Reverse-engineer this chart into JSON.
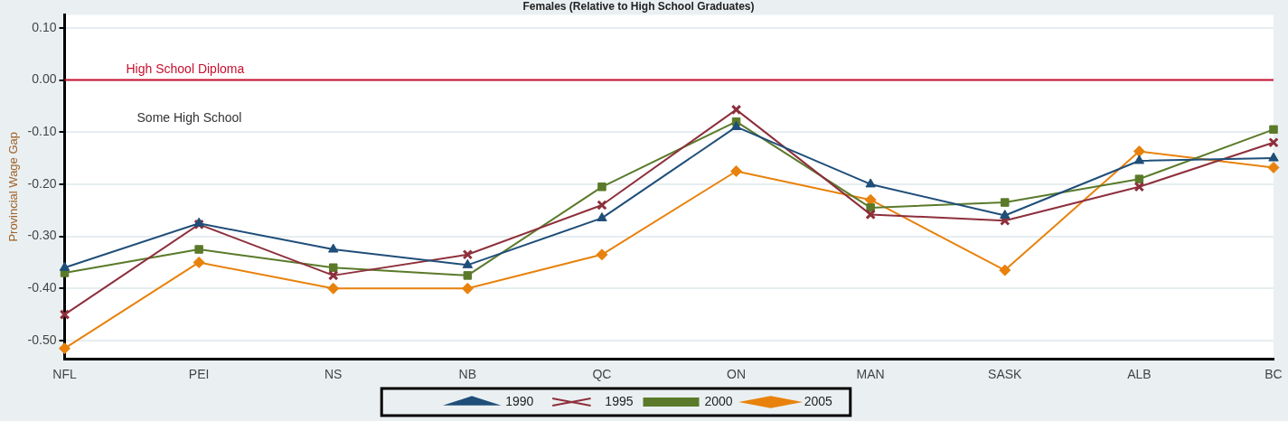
{
  "chart_data": {
    "type": "line",
    "title": "Females (Relative to High School Graduates)",
    "ylabel": "Provincial Wage Gap",
    "categories": [
      "NFL",
      "PEI",
      "NS",
      "NB",
      "QC",
      "ON",
      "MAN",
      "SASK",
      "ALB",
      "BC"
    ],
    "series": [
      {
        "name": "1990",
        "color": "#1f4e79",
        "marker": "triangle",
        "values": [
          -0.36,
          -0.275,
          -0.325,
          -0.355,
          -0.265,
          -0.09,
          -0.2,
          -0.26,
          -0.155,
          -0.15
        ]
      },
      {
        "name": "1995",
        "color": "#8e2f3c",
        "marker": "cross",
        "values": [
          -0.45,
          -0.277,
          -0.375,
          -0.335,
          -0.24,
          -0.057,
          -0.258,
          -0.27,
          -0.205,
          -0.12
        ]
      },
      {
        "name": "2000",
        "color": "#5a7a2a",
        "marker": "square",
        "values": [
          -0.37,
          -0.325,
          -0.36,
          -0.375,
          -0.205,
          -0.08,
          -0.245,
          -0.235,
          -0.19,
          -0.095
        ]
      },
      {
        "name": "2005",
        "color": "#e8820c",
        "marker": "diamond",
        "values": [
          -0.515,
          -0.35,
          -0.4,
          -0.4,
          -0.335,
          -0.175,
          -0.23,
          -0.365,
          -0.137,
          -0.168
        ]
      }
    ],
    "ylim": [
      -0.535,
      0.125
    ],
    "yticks": [
      {
        "value": 0.1,
        "label": "0.10"
      },
      {
        "value": 0,
        "label": "0.00"
      },
      {
        "value": -0.1,
        "label": "-0.10"
      },
      {
        "value": -0.2,
        "label": "-0.20"
      },
      {
        "value": -0.3,
        "label": "-0.30"
      },
      {
        "value": -0.4,
        "label": "-0.40"
      },
      {
        "value": -0.5,
        "label": "-0.50"
      }
    ],
    "grid": "y",
    "legend": "bottom",
    "line_style": "solid",
    "ref_lines": [
      {
        "axis": "y",
        "value": 0,
        "label": "High School Diploma",
        "color": "#c8102e"
      }
    ],
    "annotations": [
      "Some High School"
    ]
  }
}
